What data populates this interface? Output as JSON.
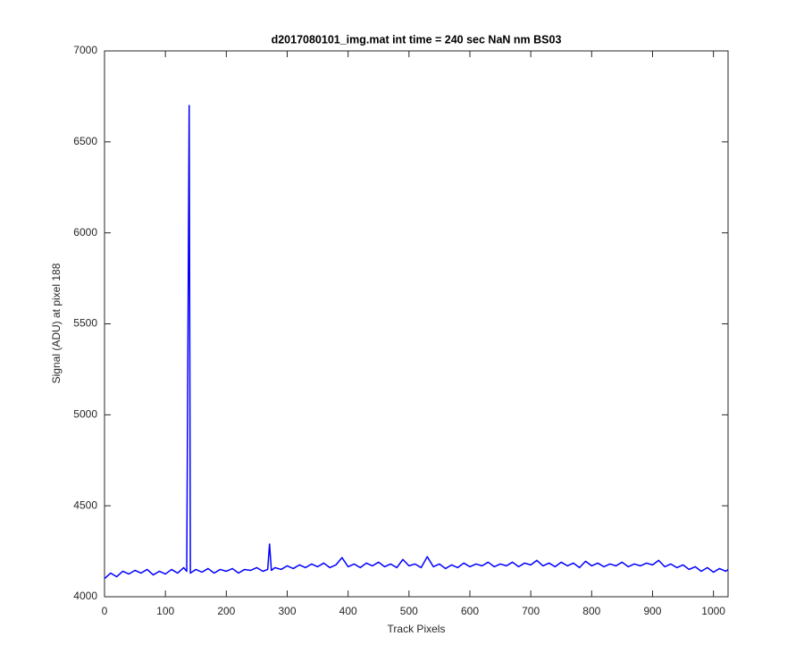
{
  "chart_data": {
    "type": "line",
    "title": "d2017080101_img.mat int time = 240 sec  NaN nm BS03",
    "x_label": "Track Pixels",
    "y_label": "Signal (ADU) at pixel 188",
    "xlim": [
      0,
      1024
    ],
    "ylim": [
      4000,
      7000
    ],
    "xticks": [
      0,
      100,
      200,
      300,
      400,
      500,
      600,
      700,
      800,
      900,
      1000
    ],
    "yticks": [
      4000,
      4500,
      5000,
      5500,
      6000,
      6500,
      7000
    ],
    "grid": false,
    "series": [
      {
        "color": "#0000ff",
        "x": [
          0,
          10,
          20,
          30,
          40,
          50,
          60,
          70,
          80,
          90,
          100,
          110,
          120,
          130,
          135,
          139,
          141,
          150,
          160,
          170,
          180,
          190,
          200,
          210,
          220,
          230,
          240,
          250,
          260,
          268,
          271,
          274,
          280,
          290,
          300,
          310,
          320,
          330,
          340,
          350,
          360,
          370,
          380,
          390,
          400,
          410,
          420,
          430,
          440,
          450,
          460,
          470,
          480,
          490,
          500,
          510,
          520,
          530,
          540,
          550,
          560,
          570,
          580,
          590,
          600,
          610,
          620,
          630,
          640,
          650,
          660,
          670,
          680,
          690,
          700,
          710,
          720,
          730,
          740,
          750,
          760,
          770,
          780,
          790,
          800,
          810,
          820,
          830,
          840,
          850,
          860,
          870,
          880,
          890,
          900,
          910,
          920,
          930,
          940,
          950,
          960,
          970,
          980,
          990,
          1000,
          1010,
          1020,
          1024
        ],
        "values": [
          4100,
          4130,
          4110,
          4140,
          4125,
          4145,
          4130,
          4150,
          4120,
          4140,
          4125,
          4150,
          4130,
          4160,
          4140,
          6700,
          4130,
          4150,
          4135,
          4155,
          4130,
          4150,
          4140,
          4155,
          4130,
          4150,
          4145,
          4160,
          4140,
          4150,
          4290,
          4145,
          4160,
          4150,
          4170,
          4155,
          4175,
          4160,
          4180,
          4165,
          4185,
          4160,
          4175,
          4215,
          4165,
          4180,
          4160,
          4185,
          4170,
          4190,
          4165,
          4180,
          4160,
          4205,
          4170,
          4180,
          4160,
          4220,
          4165,
          4180,
          4155,
          4175,
          4160,
          4185,
          4165,
          4180,
          4170,
          4190,
          4165,
          4180,
          4170,
          4190,
          4165,
          4185,
          4175,
          4200,
          4170,
          4185,
          4165,
          4190,
          4170,
          4185,
          4160,
          4195,
          4170,
          4185,
          4165,
          4180,
          4170,
          4190,
          4165,
          4180,
          4170,
          4185,
          4175,
          4200,
          4165,
          4180,
          4160,
          4175,
          4150,
          4165,
          4140,
          4160,
          4135,
          4155,
          4140,
          4150
        ]
      }
    ]
  }
}
